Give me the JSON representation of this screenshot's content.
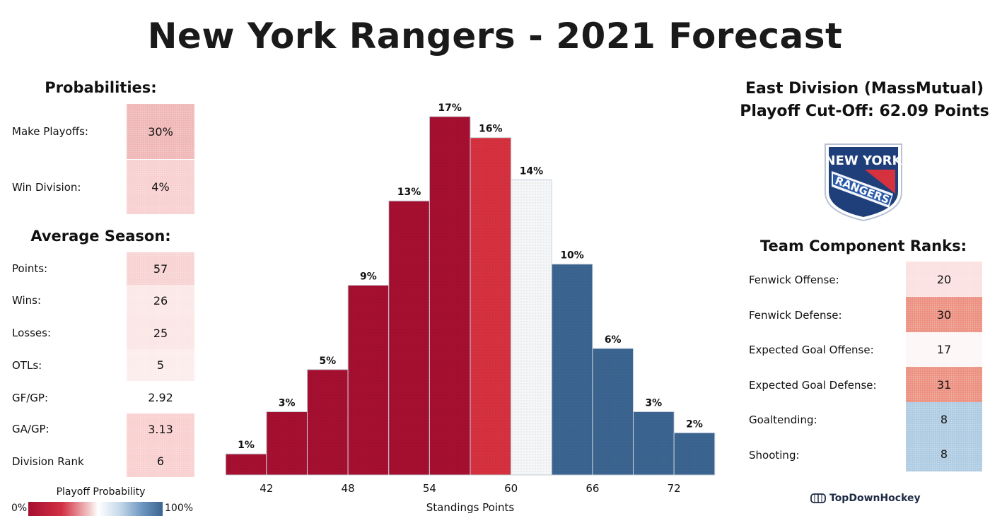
{
  "page": {
    "title": "New York Rangers - 2021 Forecast"
  },
  "probabilities": {
    "heading": "Probabilities:",
    "rows": [
      {
        "label": "Make Playoffs:",
        "value": "30%",
        "color": "#f0b6b6"
      },
      {
        "label": "Win Division:",
        "value": "4%",
        "color": "#f8d0d0"
      }
    ]
  },
  "average_season": {
    "heading": "Average Season:",
    "rows": [
      {
        "label": "Points:",
        "value": "57",
        "color": "#f8d2d2"
      },
      {
        "label": "Wins:",
        "value": "26",
        "color": "#fbe7e7"
      },
      {
        "label": "Losses:",
        "value": "25",
        "color": "#fbe5e5"
      },
      {
        "label": "OTLs:",
        "value": "5",
        "color": "#fcecec"
      },
      {
        "label": "GF/GP:",
        "value": "2.92",
        "color": "#ffffff"
      },
      {
        "label": "GA/GP:",
        "value": "3.13",
        "color": "#f9cfcf"
      },
      {
        "label": "Division Rank",
        "value": "6",
        "color": "#f9cfcf"
      }
    ]
  },
  "division": {
    "name": "East Division (MassMutual)",
    "cutoff": "Playoff Cut-Off: 62.09 Points"
  },
  "logo": {
    "icon": "rangers-shield-logo",
    "line1": "NEW YORK",
    "line2": "RANGERS"
  },
  "component_ranks": {
    "heading": "Team Component Ranks:",
    "rows": [
      {
        "label": "Fenwick Offense:",
        "value": "20",
        "color": "#fbe0e0"
      },
      {
        "label": "Fenwick Defense:",
        "value": "30",
        "color": "#ec9080"
      },
      {
        "label": "Expected Goal Offense:",
        "value": "17",
        "color": "#fdf6f6"
      },
      {
        "label": "Expected Goal Defense:",
        "value": "31",
        "color": "#ec9080"
      },
      {
        "label": "Goaltending:",
        "value": "8",
        "color": "#aecbe2"
      },
      {
        "label": "Shooting:",
        "value": "8",
        "color": "#aecbe2"
      }
    ]
  },
  "legend": {
    "title": "Playoff Probability",
    "min_label": "0%",
    "max_label": "100%"
  },
  "chart_data": {
    "type": "bar",
    "xlabel": "Standings Points",
    "x_ticks": [
      42,
      48,
      54,
      60,
      66,
      72
    ],
    "bin_width": 3,
    "xlim": [
      38,
      76
    ],
    "ylim": [
      0,
      17.5
    ],
    "grid": false,
    "bins": [
      {
        "x": 40.5,
        "value": 1,
        "label": "1%",
        "color": "#a50f30"
      },
      {
        "x": 43.5,
        "value": 3,
        "label": "3%",
        "color": "#a50f30"
      },
      {
        "x": 46.5,
        "value": 5,
        "label": "5%",
        "color": "#a50f30"
      },
      {
        "x": 49.5,
        "value": 9,
        "label": "9%",
        "color": "#a50f30"
      },
      {
        "x": 52.5,
        "value": 13,
        "label": "13%",
        "color": "#a50f30"
      },
      {
        "x": 55.5,
        "value": 17,
        "label": "17%",
        "color": "#a50f30"
      },
      {
        "x": 58.5,
        "value": 16,
        "label": "16%",
        "color": "#d6313f"
      },
      {
        "x": 61.5,
        "value": 14,
        "label": "14%",
        "color": "#f4f6f8"
      },
      {
        "x": 64.5,
        "value": 10,
        "label": "10%",
        "color": "#3b6590"
      },
      {
        "x": 67.5,
        "value": 6,
        "label": "6%",
        "color": "#3b6590"
      },
      {
        "x": 70.5,
        "value": 3,
        "label": "3%",
        "color": "#3b6590"
      },
      {
        "x": 73.5,
        "value": 2,
        "label": "2%",
        "color": "#3b6590"
      }
    ]
  },
  "brand": {
    "icon": "topdownhockey-rink-icon",
    "name": "TopDownHockey"
  }
}
